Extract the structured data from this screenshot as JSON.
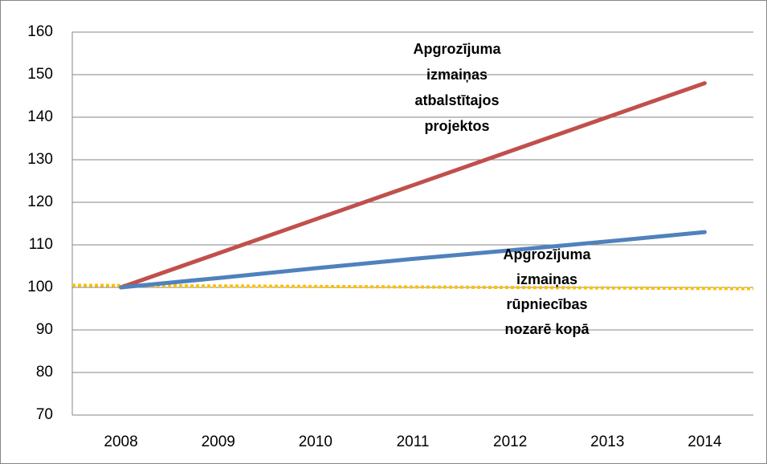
{
  "chart_data": {
    "type": "line",
    "categories": [
      "2008",
      "2009",
      "2010",
      "2011",
      "2012",
      "2013",
      "2014"
    ],
    "series": [
      {
        "color": "#c0504d",
        "values": [
          100,
          108,
          116,
          124,
          132,
          140,
          148
        ]
      },
      {
        "color": "#4f81bd",
        "values": [
          100,
          102.2,
          104.5,
          106.7,
          108.7,
          110.8,
          113
        ]
      }
    ],
    "reference_line": {
      "color": "#ffc000",
      "values": [
        100.5,
        99.7
      ]
    },
    "ylim": [
      70,
      160
    ],
    "yticks": [
      70,
      80,
      90,
      100,
      110,
      120,
      130,
      140,
      150,
      160
    ],
    "grid": true,
    "annotations": [
      {
        "lines": [
          "Apgrozījuma",
          "izmaiņas",
          "atbalstītajos",
          "projektos"
        ]
      },
      {
        "lines": [
          "Apgrozījuma",
          "izmaiņas",
          "rūpniecības",
          "nozarē kopā"
        ]
      }
    ]
  }
}
